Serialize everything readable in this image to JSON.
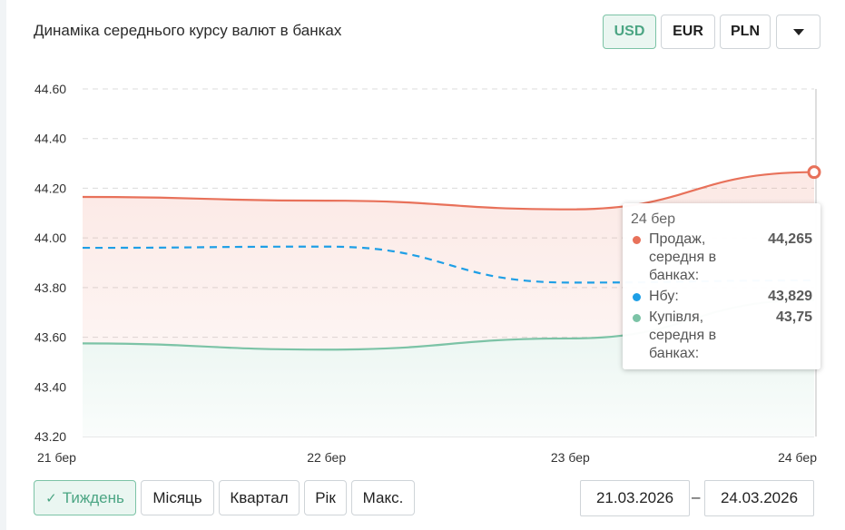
{
  "title": "Динаміка середнього курсу валют в банках",
  "currencies": [
    {
      "label": "USD",
      "active": true
    },
    {
      "label": "EUR",
      "active": false
    },
    {
      "label": "PLN",
      "active": false
    }
  ],
  "dropdown_icon": "chevron-down-icon",
  "chart_data": {
    "type": "line",
    "x": [
      "21 бер",
      "22 бер",
      "23 бер",
      "24 бер"
    ],
    "ylim": [
      43.2,
      44.6
    ],
    "yticks": [
      "44.60",
      "44.40",
      "44.20",
      "44.00",
      "43.80",
      "43.60",
      "43.40",
      "43.20"
    ],
    "grid": true,
    "series": [
      {
        "name": "Продаж, середня в банках",
        "values": [
          44.165,
          44.15,
          44.115,
          44.265
        ],
        "color": "#e8715a",
        "style": "solid"
      },
      {
        "name": "Нбу",
        "values": [
          43.96,
          43.965,
          43.82,
          43.829
        ],
        "color": "#1e9fe6",
        "style": "dashed"
      },
      {
        "name": "Купівля, середня в банках",
        "values": [
          43.575,
          43.55,
          43.595,
          43.75
        ],
        "color": "#7cc3a6",
        "style": "solid"
      }
    ]
  },
  "tooltip": {
    "date": "24 бер",
    "rows": [
      {
        "label": "Продаж, середня в банках:",
        "value": "44,265",
        "color": "#e8715a"
      },
      {
        "label": "Нбу:",
        "value": "43,829",
        "color": "#1e9fe6"
      },
      {
        "label": "Купівля, середня в банках:",
        "value": "43,75",
        "color": "#7cc3a6"
      }
    ]
  },
  "periods": [
    {
      "label": "Тиждень",
      "active": true
    },
    {
      "label": "Місяць",
      "active": false
    },
    {
      "label": "Квартал",
      "active": false
    },
    {
      "label": "Рік",
      "active": false
    },
    {
      "label": "Макс.",
      "active": false
    }
  ],
  "date_from": "21.03.2026",
  "date_to": "24.03.2026",
  "date_separator": "–",
  "check_icon": "✓"
}
